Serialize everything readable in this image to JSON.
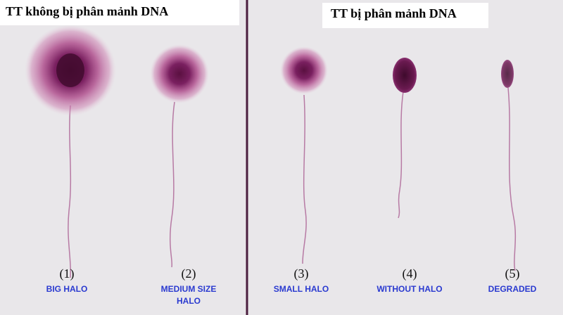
{
  "header": {
    "left": "TT không bị phân mảnh DNA",
    "right": "TT bị phân mảnh DNA"
  },
  "cells": [
    {
      "number": "(1)",
      "label": [
        "BIG HALO"
      ]
    },
    {
      "number": "(2)",
      "label": [
        "MEDIUM SIZE",
        "HALO"
      ]
    },
    {
      "number": "(3)",
      "label": [
        "SMALL HALO"
      ]
    },
    {
      "number": "(4)",
      "label": [
        "WITHOUT HALO"
      ]
    },
    {
      "number": "(5)",
      "label": [
        "DEGRADED"
      ]
    }
  ]
}
